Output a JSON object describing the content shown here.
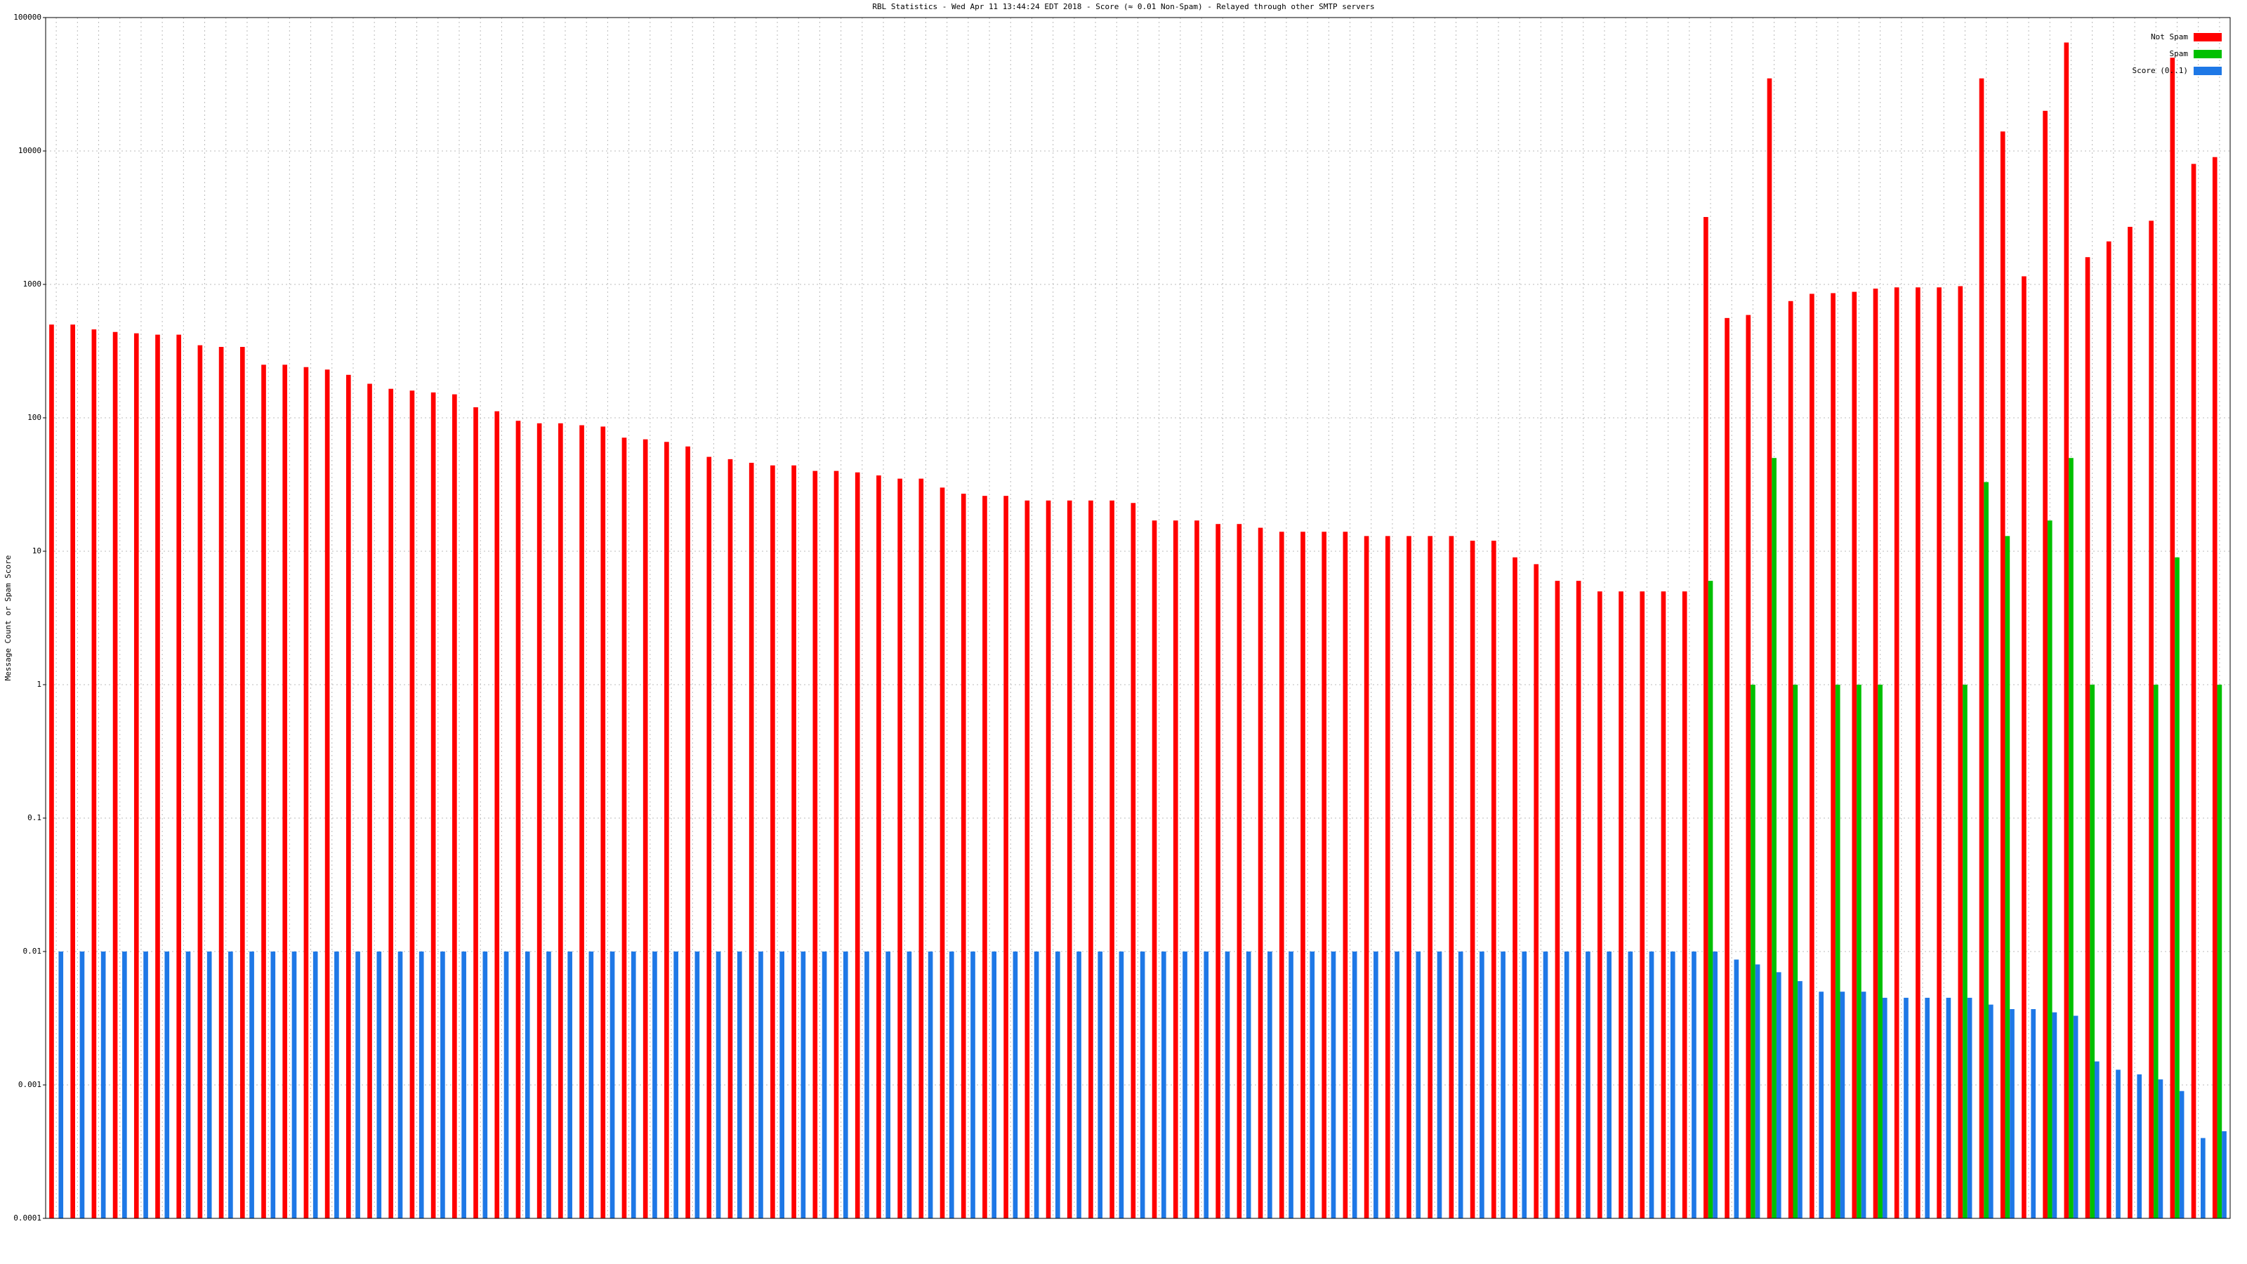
{
  "chart_data": {
    "type": "bar",
    "title": "RBL Statistics - Wed Apr 11 13:44:24 EDT 2018 - Score (≈ 0.01 Non-Spam) - Relayed through other SMTP servers",
    "ylabel": "Message Count or Spam Score",
    "log_scale": true,
    "grid": true,
    "legend": "upper right",
    "ylim": [
      0.0001,
      100000
    ],
    "yticks": [
      0.0001,
      0.001,
      0.01,
      0.1,
      1,
      10,
      100,
      1000,
      10000,
      100000
    ],
    "categories": [
      null,
      null,
      null,
      null,
      null,
      null,
      null,
      null,
      null,
      null,
      null,
      null,
      null,
      null,
      null,
      null,
      null,
      null,
      null,
      null,
      null,
      null,
      null,
      null,
      null,
      null,
      null,
      null,
      null,
      null,
      null,
      null,
      null,
      null,
      null,
      null,
      null,
      null,
      null,
      null,
      null,
      null,
      null,
      null,
      null,
      null,
      null,
      null,
      null,
      null,
      null,
      null,
      null,
      null,
      null,
      null,
      null,
      null,
      null,
      null,
      null,
      null,
      null,
      null,
      null,
      null,
      null,
      null,
      null,
      null,
      null,
      null,
      null,
      null,
      null,
      null,
      null,
      null,
      null,
      null,
      null,
      null,
      null,
      null,
      null,
      null,
      null,
      null,
      null,
      null,
      null,
      null,
      null,
      null,
      null,
      null,
      null,
      null,
      null,
      null,
      null,
      null,
      null
    ],
    "series": [
      {
        "name": "Not Spam",
        "color": "#ff0000",
        "values": [
          500,
          500,
          460,
          440,
          430,
          420,
          420,
          350,
          340,
          340,
          250,
          250,
          240,
          230,
          210,
          180,
          165,
          160,
          155,
          150,
          120,
          112,
          95,
          91,
          91,
          88,
          86,
          71,
          69,
          66,
          61,
          51,
          49,
          46,
          44,
          44,
          40,
          40,
          39,
          37,
          35,
          35,
          30,
          27,
          26,
          26,
          24,
          24,
          24,
          24,
          24,
          23,
          17,
          17,
          17,
          16,
          16,
          15,
          14,
          14,
          14,
          14,
          13,
          13,
          13,
          13,
          13,
          12,
          12,
          9,
          8,
          6,
          6,
          5,
          5,
          5,
          5,
          5,
          3200,
          560,
          590,
          35000,
          750,
          850,
          860,
          880,
          930,
          950,
          950,
          950,
          970,
          35000,
          14000,
          1150,
          20000,
          65000,
          1600,
          2100,
          2700,
          3000,
          50000,
          8000,
          9000
        ]
      },
      {
        "name": "Spam",
        "color": "#00c000",
        "values": [
          null,
          null,
          null,
          null,
          null,
          null,
          null,
          null,
          null,
          null,
          null,
          null,
          null,
          null,
          null,
          null,
          null,
          null,
          null,
          null,
          null,
          null,
          null,
          null,
          null,
          null,
          null,
          null,
          null,
          null,
          null,
          null,
          null,
          null,
          null,
          null,
          null,
          null,
          null,
          null,
          null,
          null,
          null,
          null,
          null,
          null,
          null,
          null,
          null,
          null,
          null,
          null,
          null,
          null,
          null,
          null,
          null,
          null,
          null,
          null,
          null,
          null,
          null,
          null,
          null,
          null,
          null,
          null,
          null,
          null,
          null,
          null,
          null,
          null,
          null,
          null,
          null,
          null,
          6,
          null,
          1,
          50,
          1,
          null,
          1,
          1,
          1,
          null,
          null,
          null,
          1,
          33,
          13,
          null,
          17,
          50,
          1,
          null,
          null,
          1,
          9,
          null,
          1
        ]
      },
      {
        "name": "Score (0..1)",
        "color": "#1e78e6",
        "values": [
          0.01,
          0.01,
          0.01,
          0.01,
          0.01,
          0.01,
          0.01,
          0.01,
          0.01,
          0.01,
          0.01,
          0.01,
          0.01,
          0.01,
          0.01,
          0.01,
          0.01,
          0.01,
          0.01,
          0.01,
          0.01,
          0.01,
          0.01,
          0.01,
          0.01,
          0.01,
          0.01,
          0.01,
          0.01,
          0.01,
          0.01,
          0.01,
          0.01,
          0.01,
          0.01,
          0.01,
          0.01,
          0.01,
          0.01,
          0.01,
          0.01,
          0.01,
          0.01,
          0.01,
          0.01,
          0.01,
          0.01,
          0.01,
          0.01,
          0.01,
          0.01,
          0.01,
          0.01,
          0.01,
          0.01,
          0.01,
          0.01,
          0.01,
          0.01,
          0.01,
          0.01,
          0.01,
          0.01,
          0.01,
          0.01,
          0.01,
          0.01,
          0.01,
          0.01,
          0.01,
          0.01,
          0.01,
          0.01,
          0.01,
          0.01,
          0.01,
          0.01,
          0.01,
          0.01,
          0.0087,
          0.008,
          0.007,
          0.006,
          0.005,
          0.005,
          0.005,
          0.0045,
          0.0045,
          0.0045,
          0.0045,
          0.0045,
          0.004,
          0.0037,
          0.0037,
          0.0035,
          0.0033,
          0.0015,
          0.0013,
          0.0012,
          0.0011,
          0.0009,
          0.0004,
          0.00045
        ]
      }
    ]
  }
}
